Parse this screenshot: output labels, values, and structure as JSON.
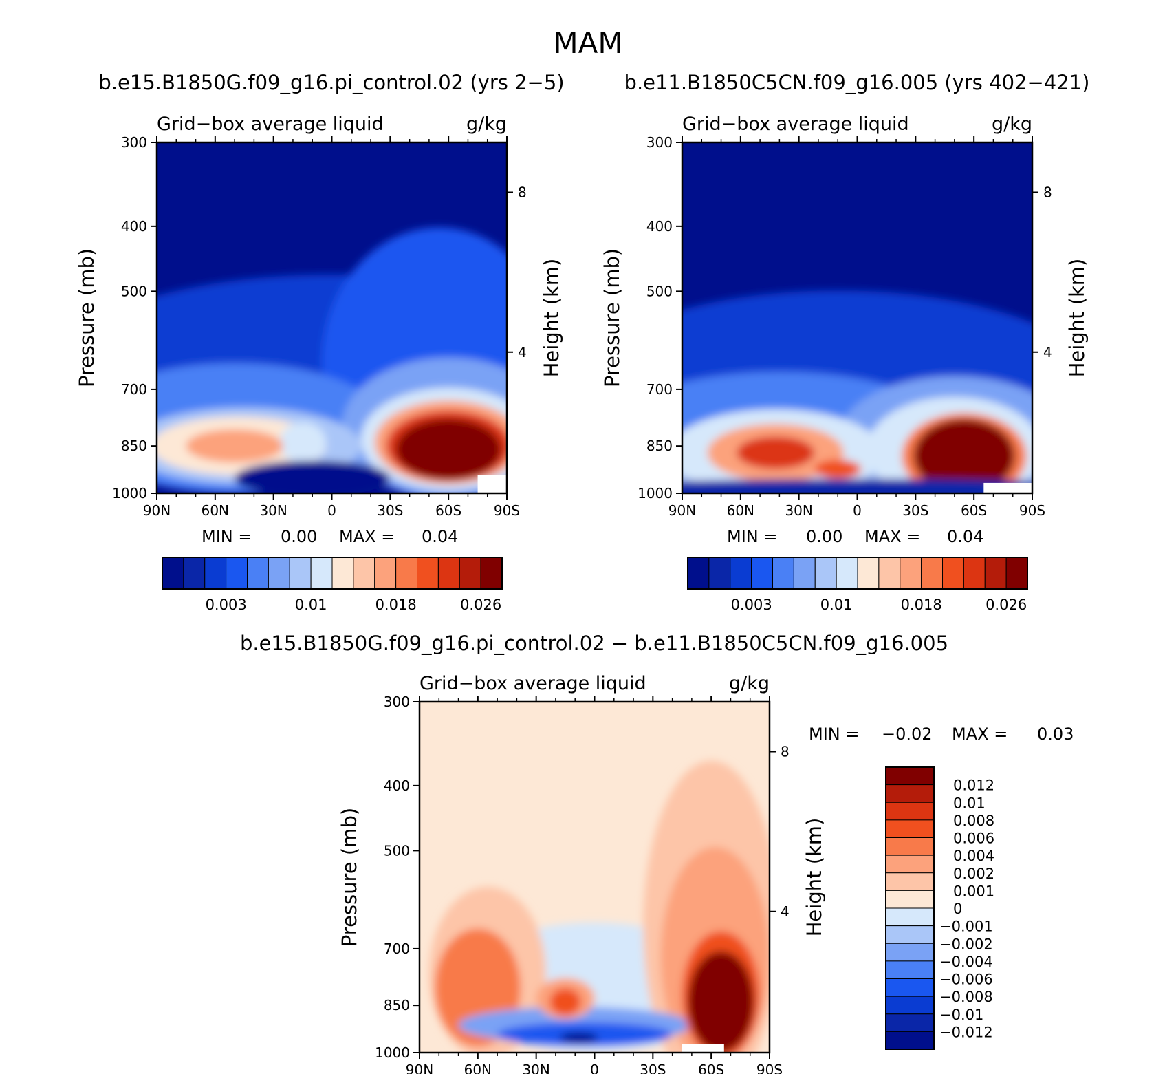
{
  "figure": {
    "title": "MAM"
  },
  "colors": {
    "seq": [
      "#000f8c",
      "#0a26a8",
      "#0a3cd2",
      "#1a57f0",
      "#4a80f5",
      "#7aa2f5",
      "#aac6f8",
      "#d6e8fb",
      "#fde8d6",
      "#fdc5a8",
      "#fca27c",
      "#f87a4a",
      "#f0501f",
      "#dc3512",
      "#b41c0a",
      "#800000"
    ],
    "diff": [
      "#000f8c",
      "#0a26a8",
      "#0a3cd2",
      "#1a57f0",
      "#4a80f5",
      "#7aa2f5",
      "#aac6f8",
      "#d6e8fb",
      "#fde8d6",
      "#fdc5a8",
      "#fca27c",
      "#f87a4a",
      "#f0501f",
      "#dc3512",
      "#b41c0a",
      "#800000"
    ]
  },
  "chart_data": [
    {
      "type": "heatmap",
      "title": "b.e15.B1850G.f09_g16.pi_control.02 (yrs 2−5)",
      "variable": "Grid−box average liquid",
      "units": "g/kg",
      "xlabel": "",
      "ylabel": "Pressure (mb)",
      "y2label": "Height (km)",
      "x_ticks": [
        "90N",
        "60N",
        "30N",
        "0",
        "30S",
        "60S",
        "90S"
      ],
      "y_ticks": [
        "300",
        "400",
        "500",
        "700",
        "850",
        "1000"
      ],
      "y2_ticks": [
        "8",
        "4"
      ],
      "ylim": [
        1000,
        300
      ],
      "y_scale": "log",
      "stats": {
        "min_label": "MIN =",
        "min": "0.00",
        "max_label": "MAX =",
        "max": "0.04"
      },
      "colorbar_ticks": [
        "0.003",
        "0.01",
        "0.018",
        "0.026"
      ],
      "features": [
        {
          "lat": -60,
          "p": 850,
          "value": 0.04
        },
        {
          "lat": 48,
          "p": 850,
          "value": 0.016
        },
        {
          "lat": 15,
          "p": 850,
          "value": 0.012
        }
      ]
    },
    {
      "type": "heatmap",
      "title": "b.e11.B1850C5CN.f09_g16.005 (yrs 402−421)",
      "variable": "Grid−box average liquid",
      "units": "g/kg",
      "xlabel": "",
      "ylabel": "Pressure (mb)",
      "y2label": "Height (km)",
      "x_ticks": [
        "90N",
        "60N",
        "30N",
        "0",
        "30S",
        "60S",
        "90S"
      ],
      "y_ticks": [
        "300",
        "400",
        "500",
        "700",
        "850",
        "1000"
      ],
      "y2_ticks": [
        "8",
        "4"
      ],
      "ylim": [
        1000,
        300
      ],
      "y_scale": "log",
      "stats": {
        "min_label": "MIN =",
        "min": "0.00",
        "max_label": "MAX =",
        "max": "0.04"
      },
      "colorbar_ticks": [
        "0.003",
        "0.01",
        "0.018",
        "0.026"
      ],
      "features": [
        {
          "lat": -55,
          "p": 880,
          "value": 0.04
        },
        {
          "lat": 42,
          "p": 870,
          "value": 0.022
        },
        {
          "lat": 10,
          "p": 920,
          "value": 0.02
        }
      ]
    },
    {
      "type": "heatmap",
      "title": "b.e15.B1850G.f09_g16.pi_control.02 − b.e11.B1850C5CN.f09_g16.005",
      "variable": "Grid−box average liquid",
      "units": "g/kg",
      "xlabel": "",
      "ylabel": "Pressure (mb)",
      "y2label": "Height (km)",
      "x_ticks": [
        "90N",
        "60N",
        "30N",
        "0",
        "30S",
        "60S",
        "90S"
      ],
      "y_ticks": [
        "300",
        "400",
        "500",
        "700",
        "850",
        "1000"
      ],
      "y2_ticks": [
        "8",
        "4"
      ],
      "ylim": [
        1000,
        300
      ],
      "y_scale": "log",
      "stats": {
        "min_label": "MIN =",
        "min": "−0.02",
        "max_label": "MAX =",
        "max": "0.03"
      },
      "colorbar_ticks": [
        "0.012",
        "0.01",
        "0.008",
        "0.006",
        "0.004",
        "0.002",
        "0.001",
        "0",
        "−0.001",
        "−0.002",
        "−0.004",
        "−0.006",
        "−0.008",
        "−0.01",
        "−0.012"
      ],
      "features": [
        {
          "lat": -65,
          "p": 850,
          "value": 0.03
        },
        {
          "lat": 60,
          "p": 800,
          "value": 0.008
        },
        {
          "lat": 15,
          "p": 830,
          "value": 0.01
        },
        {
          "lat": 5,
          "p": 930,
          "value": -0.02
        }
      ]
    }
  ]
}
